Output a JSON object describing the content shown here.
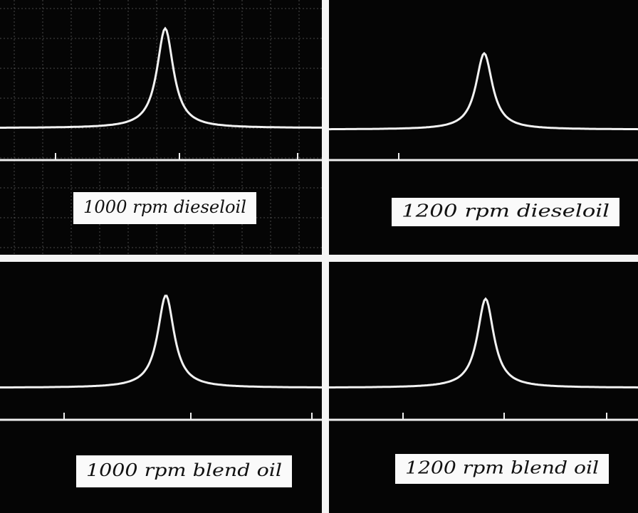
{
  "panels": [
    {
      "label": "1000 rpm dieseloil"
    },
    {
      "label": "1200 rpm dieseloil"
    },
    {
      "label": "1000 rpm blend oil"
    },
    {
      "label": "1200 rpm blend oil"
    }
  ]
}
